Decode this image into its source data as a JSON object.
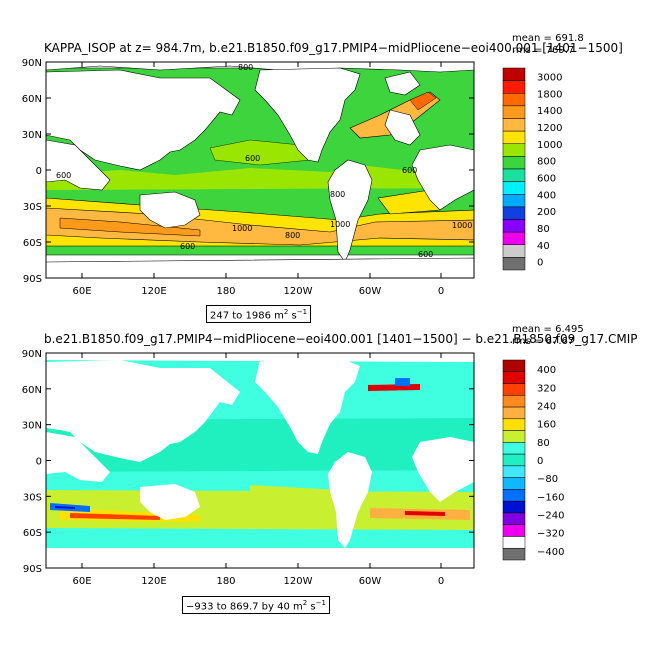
{
  "chart_data": [
    {
      "type": "heatmap",
      "title": "KAPPA_ISOP at z= 984.7m, b.e21.B1850.f09_g17.PMIP4−midPliocene−eoi400.001 [1401−1500]",
      "stats": [
        "mean = 691.8",
        "rms = 769.7"
      ],
      "x_ticks": [
        "60E",
        "120E",
        "180",
        "120W",
        "60W",
        "0"
      ],
      "y_ticks": [
        "90N",
        "60N",
        "30N",
        "0",
        "30S",
        "60S",
        "90S"
      ],
      "range_label": {
        "text": "247 to 1986 m",
        "sup1": "2",
        "mid": " s",
        "sup2": "−1"
      },
      "colorbar": {
        "labels": [
          "3000",
          "1800",
          "1400",
          "1200",
          "1000",
          "800",
          "600",
          "400",
          "200",
          "80",
          "40",
          "0"
        ],
        "colors": [
          "#c00000",
          "#ff1a00",
          "#ff6a00",
          "#ff9a1a",
          "#ffb840",
          "#ffe400",
          "#9be600",
          "#3dd43d",
          "#19e0a0",
          "#00f0ff",
          "#00aaff",
          "#1040e0",
          "#8800ff",
          "#ee00ee",
          "#cccccc",
          "#707070"
        ]
      },
      "contour_labels": [
        "800",
        "600",
        "800",
        "1000",
        "800",
        "1000",
        "600",
        "1000",
        "600",
        "600",
        "600"
      ]
    },
    {
      "type": "heatmap",
      "title": "b.e21.B1850.f09_g17.PMIP4−midPliocene−eoi400.001 [1401−1500] − b.e21.B1850.f09_g17.CMIP",
      "stats": [
        "mean = 6.495",
        "rms = 67.67"
      ],
      "x_ticks": [
        "60E",
        "120E",
        "180",
        "120W",
        "60W",
        "0"
      ],
      "y_ticks": [
        "90N",
        "60N",
        "30N",
        "0",
        "30S",
        "60S",
        "90S"
      ],
      "range_label": {
        "text": "−933 to 869.7 by 40 m",
        "sup1": "2",
        "mid": " s",
        "sup2": "−1"
      },
      "colorbar": {
        "labels": [
          "400",
          "320",
          "240",
          "160",
          "80",
          "0",
          "−80",
          "−160",
          "−240",
          "−320",
          "−400"
        ],
        "colors": [
          "#b00000",
          "#e00000",
          "#ff4000",
          "#ff8a20",
          "#ffb040",
          "#ffe000",
          "#c8f030",
          "#40ffe0",
          "#20f0c0",
          "#40e8ff",
          "#10b8ff",
          "#0070ff",
          "#0010d0",
          "#8000e0",
          "#ee00ee",
          "#ffffff",
          "#707070"
        ]
      }
    }
  ]
}
